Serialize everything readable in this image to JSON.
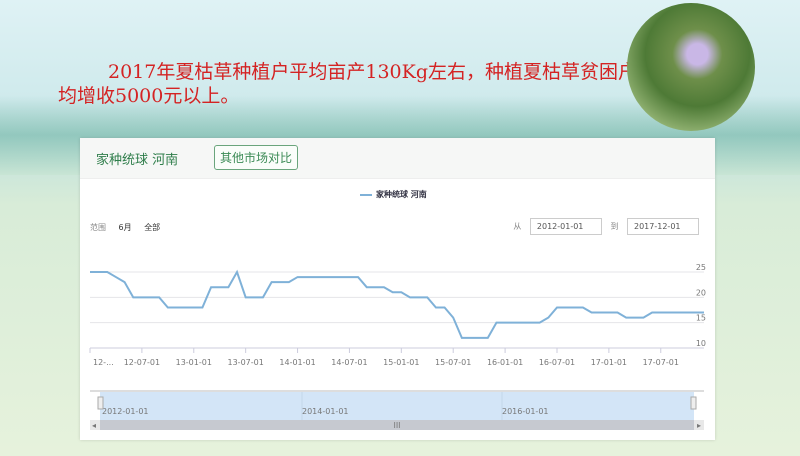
{
  "slide": {
    "title": "2017年夏枯草种植户平均亩产130Kg左右，种植夏枯草贫困户均增收5000元以上。",
    "title_color": "#d42323"
  },
  "card": {
    "title": "家种统球 河南",
    "compare_button": "其他市场对比",
    "range_label": "范围",
    "range_options": [
      "6月",
      "全部"
    ],
    "from_label": "从",
    "from_date": "2012-01-01",
    "to_label": "到",
    "to_date": "2017-12-01"
  },
  "navigator": {
    "labels": [
      "2012-01-01",
      "2014-01-01",
      "2016-01-01"
    ],
    "scroll_grip": "III"
  },
  "chart_data": {
    "type": "line",
    "legend": "家种统球 河南",
    "legend_position": "top-center",
    "series_color": "#7fb1d8",
    "x_start": "2012-01",
    "x_interval": "month",
    "x_tick_labels": [
      "12-...",
      "12-07-01",
      "13-01-01",
      "13-07-01",
      "14-01-01",
      "14-07-01",
      "15-01-01",
      "15-07-01",
      "16-01-01",
      "16-07-01",
      "17-01-01",
      "17-07-01"
    ],
    "y_ticks": [
      10,
      15,
      20,
      25
    ],
    "ylim": [
      10,
      25
    ],
    "grid": true,
    "values": [
      25,
      25,
      25,
      24,
      23,
      20,
      20,
      20,
      20,
      18,
      18,
      18,
      18,
      18,
      22,
      22,
      22,
      25,
      20,
      20,
      20,
      23,
      23,
      23,
      24,
      24,
      24,
      24,
      24,
      24,
      24,
      24,
      22,
      22,
      22,
      21,
      21,
      20,
      20,
      20,
      18,
      18,
      16,
      12,
      12,
      12,
      12,
      15,
      15,
      15,
      15,
      15,
      15,
      16,
      18,
      18,
      18,
      18,
      17,
      17,
      17,
      17,
      16,
      16,
      16,
      17,
      17,
      17,
      17,
      17,
      17,
      17
    ]
  }
}
